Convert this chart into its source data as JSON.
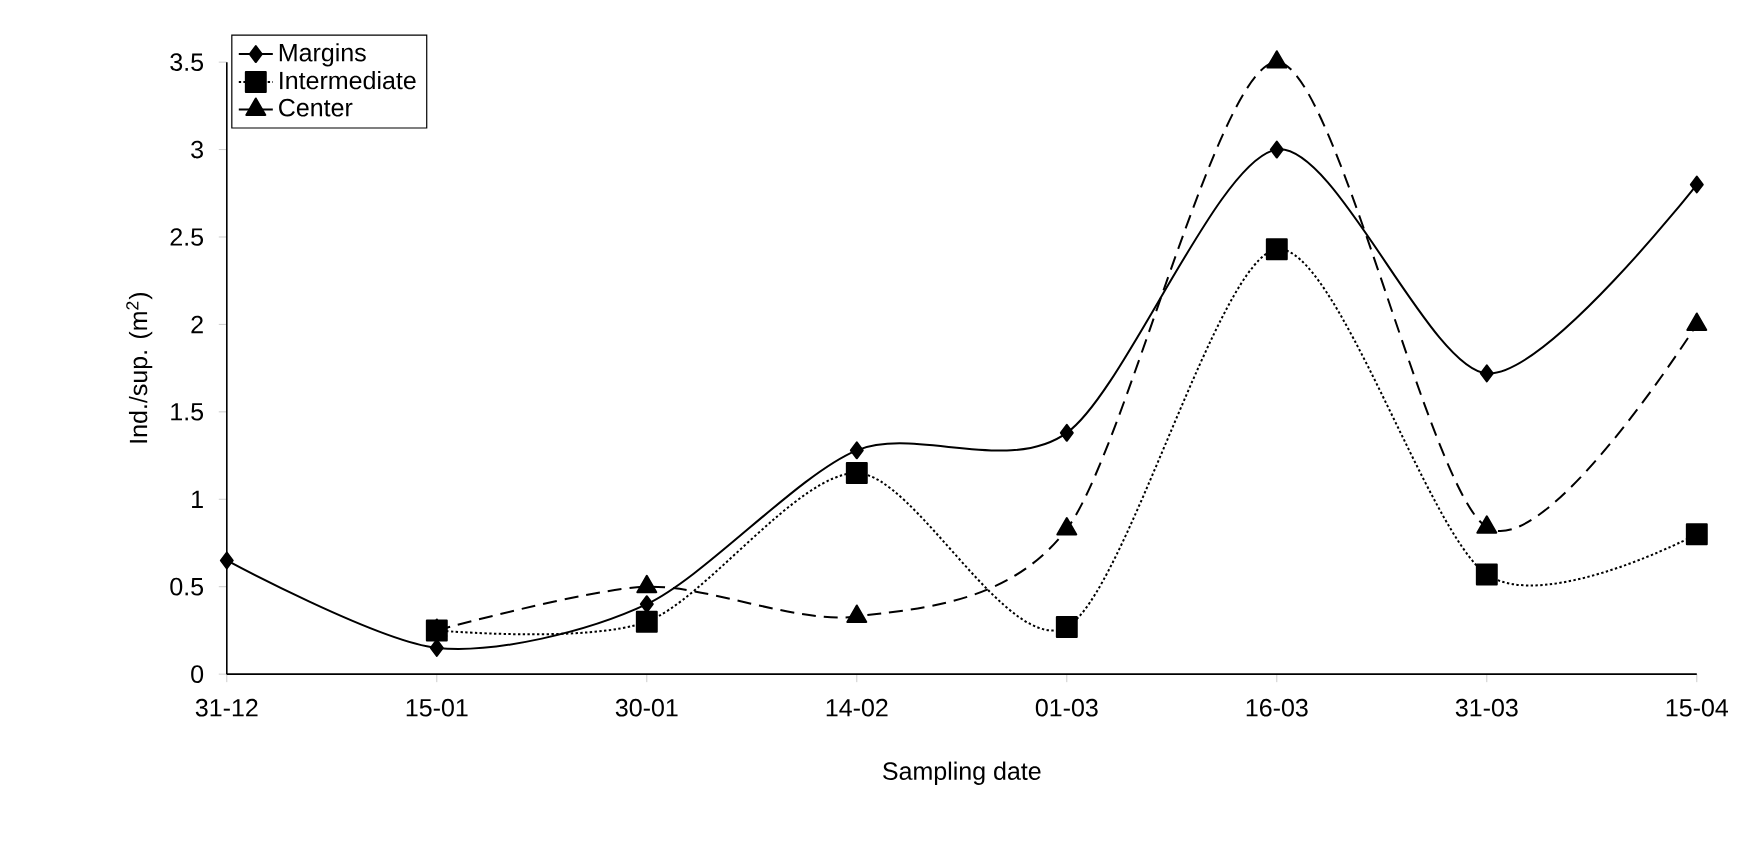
{
  "chart_data": {
    "type": "line",
    "xlabel": "Sampling date",
    "ylabel": "Ind./sup. (m$^{2}$)",
    "categories": [
      "31-12",
      "15-01",
      "30-01",
      "14-02",
      "01-03",
      "16-03",
      "31-03",
      "15-04"
    ],
    "series": [
      {
        "name": "Margins",
        "color": "#000000",
        "marker": "diamond",
        "line_style": "solid",
        "values": [
          0.65,
          0.15,
          0.4,
          1.28,
          1.38,
          3.0,
          1.72,
          2.8
        ]
      },
      {
        "name": "Intermediate",
        "color": "#000000",
        "marker": "square",
        "line_style": "dotted",
        "values": [
          null,
          0.25,
          0.3,
          1.15,
          0.27,
          2.43,
          0.57,
          0.8
        ]
      },
      {
        "name": "Center",
        "color": "#000000",
        "marker": "triangle",
        "line_style": "dashed",
        "values": [
          null,
          0.25,
          0.5,
          0.33,
          0.83,
          3.5,
          0.84,
          2.0
        ]
      }
    ],
    "ylim": [
      0,
      3.5
    ],
    "yticks": [
      0,
      0.5,
      1,
      1.5,
      2,
      2.5,
      3,
      3.5
    ],
    "grid": false,
    "legend": "top left"
  }
}
